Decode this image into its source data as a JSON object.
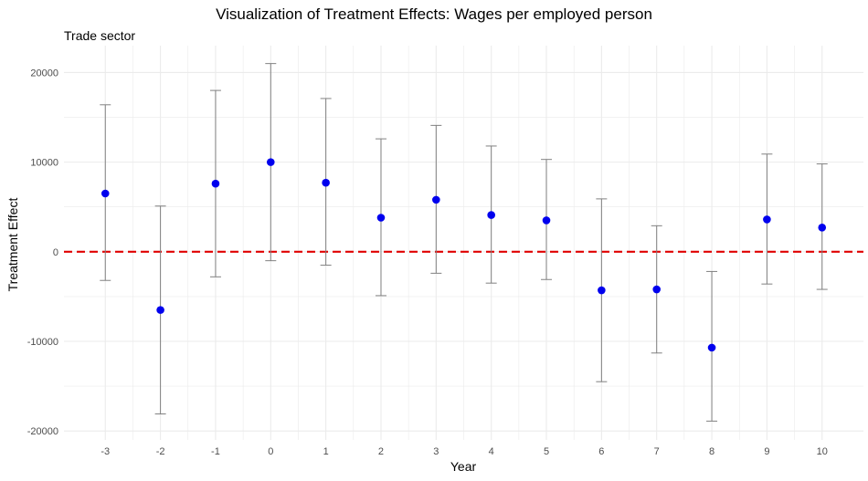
{
  "chart_data": {
    "type": "scatter",
    "title": "Visualization of Treatment Effects: Wages per employed person",
    "subtitle": "Trade sector",
    "xlabel": "Year",
    "ylabel": "Treatment Effect",
    "x": [
      -3,
      -2,
      -1,
      0,
      1,
      2,
      3,
      4,
      5,
      6,
      7,
      8,
      9,
      10
    ],
    "y": [
      6500,
      -6500,
      7600,
      10000,
      7700,
      3800,
      5800,
      4100,
      3500,
      -4300,
      -4200,
      -10700,
      3600,
      2700
    ],
    "ci_lower": [
      -3200,
      -18100,
      -2800,
      -1000,
      -1500,
      -4900,
      -2400,
      -3500,
      -3100,
      -14500,
      -11300,
      -18900,
      -3600,
      -4200
    ],
    "ci_upper": [
      16400,
      5100,
      18000,
      21000,
      17100,
      12600,
      14100,
      11800,
      10300,
      5900,
      2900,
      -2200,
      10900,
      9800
    ],
    "xticks": [
      "-3",
      "-2",
      "-1",
      "0",
      "1",
      "2",
      "3",
      "4",
      "5",
      "6",
      "7",
      "8",
      "9",
      "10"
    ],
    "yticks": [
      -20000,
      -10000,
      0,
      10000,
      20000
    ],
    "yticklabels": [
      "-20000",
      "-10000",
      "0",
      "10000",
      "20000"
    ],
    "ylim": [
      -21000,
      23000
    ],
    "xlim": [
      -3.75,
      10.75
    ],
    "reference_line": {
      "y": 0,
      "color": "#e00000",
      "style": "dashed"
    },
    "colors": {
      "point": "#0000ee",
      "errorbar": "#808080",
      "grid": "#ebebeb"
    },
    "grid": true,
    "legend": "none"
  }
}
